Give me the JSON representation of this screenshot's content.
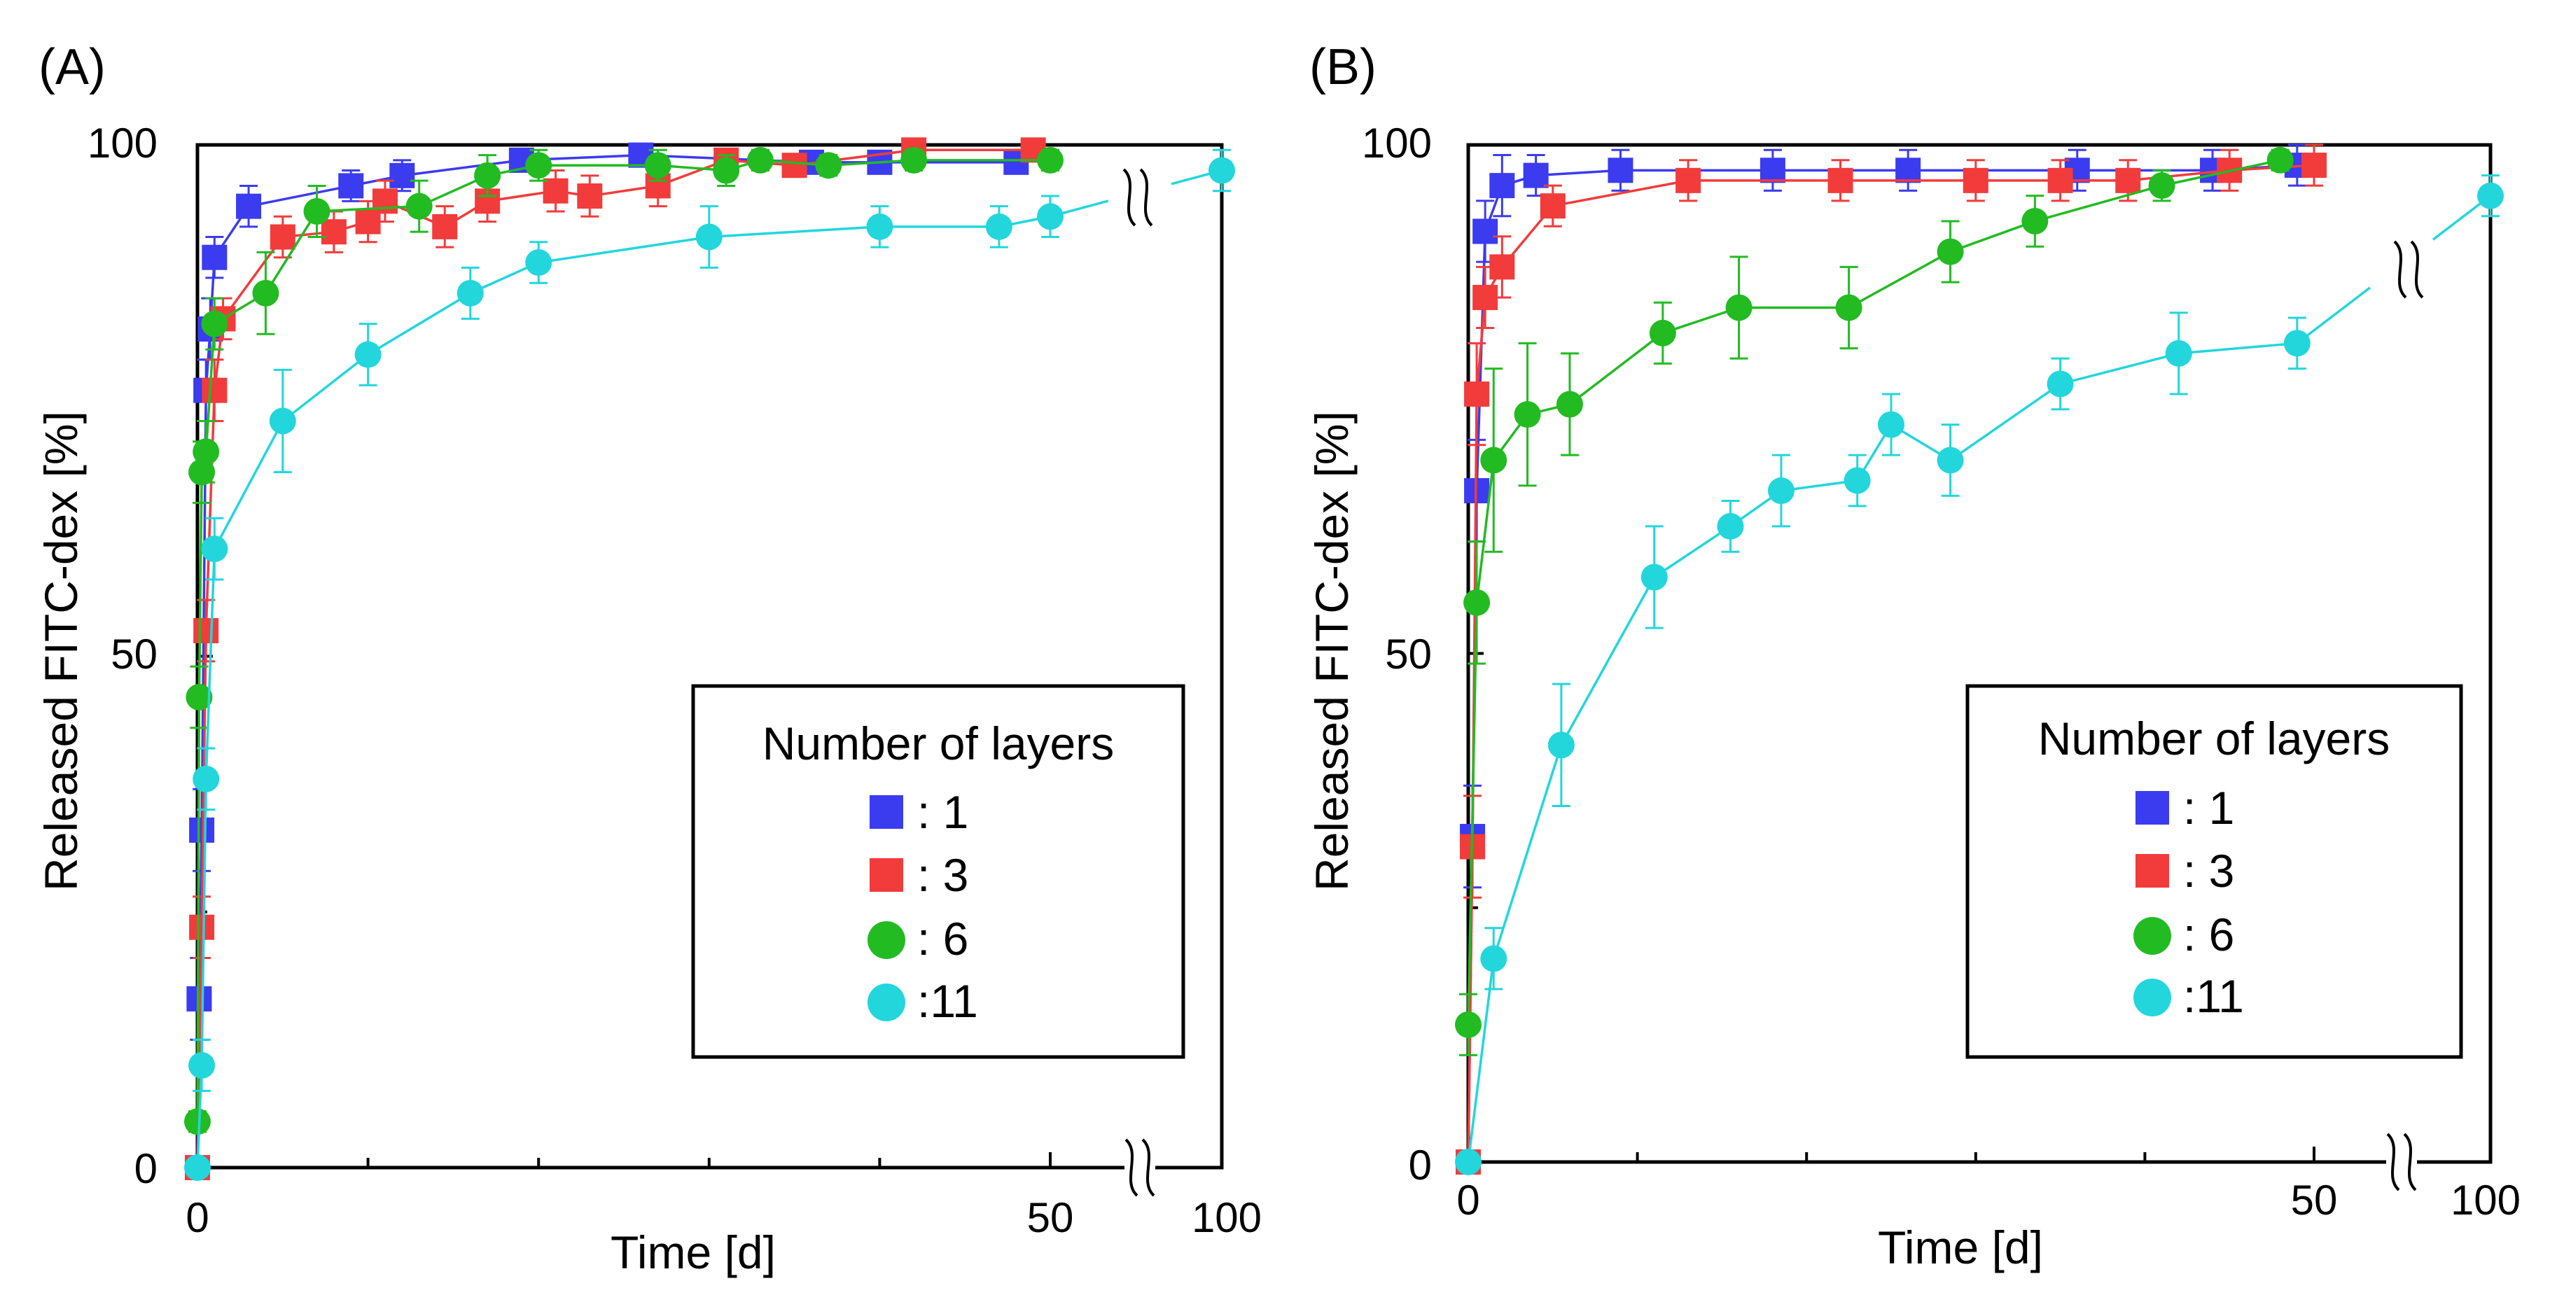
{
  "chart_data": [
    {
      "panel_label": "(A)",
      "type": "line",
      "xlabel": "Time [d]",
      "ylabel": "Released FITC-dex [%]",
      "ylim": [
        0,
        100
      ],
      "x_segment_main": [
        0,
        50
      ],
      "x_segment_break": [
        95,
        100
      ],
      "x_ticks": [
        "0",
        "50",
        "100"
      ],
      "y_ticks": [
        "0",
        "50",
        "100"
      ],
      "legend": {
        "title": "Number of layers",
        "position": "bottom-right"
      },
      "series": [
        {
          "name": "1",
          "legend_text": ":  1",
          "marker": "square",
          "color": "#3b3bf0",
          "x": [
            0,
            0.1,
            0.25,
            0.5,
            0.75,
            1,
            3,
            9,
            12,
            19,
            26,
            36,
            40,
            48
          ],
          "y": [
            0,
            16.5,
            33,
            76,
            82,
            89,
            94,
            96,
            97,
            98.5,
            99,
            98.3,
            98.3,
            98.3
          ],
          "err": [
            0,
            4,
            4,
            3,
            3,
            2,
            2,
            1.5,
            1.5,
            1,
            1,
            1,
            1,
            1
          ]
        },
        {
          "name": "3",
          "legend_text": ":  3",
          "marker": "square",
          "color": "#f23b3b",
          "x": [
            0,
            0.25,
            0.5,
            1,
            1.5,
            5,
            8,
            10,
            11,
            14.5,
            17,
            21,
            23,
            27,
            31,
            35,
            42,
            49
          ],
          "y": [
            0,
            23.5,
            52.5,
            76,
            83,
            91,
            91.5,
            92.5,
            94.5,
            92,
            94.5,
            95.5,
            95,
            96,
            98.5,
            98,
            99.5,
            99.5
          ],
          "err": [
            0,
            3,
            3,
            3,
            2,
            2,
            2,
            2,
            2,
            2,
            2,
            2,
            2,
            2,
            1,
            1,
            1,
            1
          ]
        },
        {
          "name": "6",
          "legend_text": ":  6",
          "marker": "circle",
          "color": "#22bb22",
          "x": [
            0,
            0.1,
            0.25,
            0.5,
            1,
            4,
            7,
            13,
            17,
            20,
            27,
            31,
            33,
            37,
            42,
            50
          ],
          "y": [
            4.5,
            46,
            68,
            70,
            82.5,
            85.5,
            93.5,
            94,
            97,
            98,
            98,
            97.5,
            98.5,
            98,
            98.5,
            98.5
          ],
          "err": [
            1,
            3,
            3,
            3,
            2.5,
            4,
            2.5,
            2.5,
            2,
            1.5,
            1.5,
            1.5,
            1,
            1,
            1,
            1
          ]
        },
        {
          "name": "11",
          "legend_text": ":11",
          "marker": "circle",
          "color": "#22d6dc",
          "x": [
            0,
            0.25,
            0.5,
            1,
            5,
            10,
            16,
            20,
            30,
            40,
            47,
            50,
            100
          ],
          "y": [
            0,
            10,
            38,
            60.5,
            73,
            79.5,
            85.5,
            88.5,
            91,
            92,
            92,
            93,
            97.5
          ],
          "err": [
            0,
            2.5,
            3,
            3,
            5,
            3,
            2.5,
            2,
            3,
            2,
            2,
            2,
            2
          ]
        }
      ]
    },
    {
      "panel_label": "(B)",
      "type": "line",
      "xlabel": "Time [d]",
      "ylabel": "Released FITC-dex [%]",
      "ylim": [
        0,
        100
      ],
      "x_segment_main": [
        0,
        50
      ],
      "x_segment_break": [
        95,
        100
      ],
      "x_ticks": [
        "0",
        "50",
        "100"
      ],
      "y_ticks": [
        "0",
        "50",
        "100"
      ],
      "legend": {
        "title": "Number of layers",
        "position": "bottom-right"
      },
      "series": [
        {
          "name": "1",
          "legend_text": ":  1",
          "marker": "square",
          "color": "#3b3bf0",
          "x": [
            0,
            0.25,
            0.5,
            1,
            2,
            4,
            9,
            18,
            26,
            36,
            44,
            49
          ],
          "y": [
            0,
            32,
            66,
            91.5,
            96,
            97,
            97.5,
            97.5,
            97.5,
            97.5,
            97.5,
            98
          ],
          "err": [
            0,
            5,
            5,
            3,
            3,
            2,
            2,
            2,
            2,
            2,
            2,
            2
          ]
        },
        {
          "name": "3",
          "legend_text": ":  3",
          "marker": "square",
          "color": "#f23b3b",
          "x": [
            0,
            0.25,
            0.5,
            1,
            2,
            5,
            13,
            22,
            30,
            35,
            39,
            45,
            50
          ],
          "y": [
            0,
            31,
            75.5,
            85,
            88,
            94,
            96.5,
            96.5,
            96.5,
            96.5,
            96.5,
            97.5,
            98
          ],
          "err": [
            0,
            5,
            5,
            3,
            3,
            2,
            2,
            2,
            2,
            2,
            2,
            2,
            2
          ]
        },
        {
          "name": "6",
          "legend_text": ":  6",
          "marker": "circle",
          "color": "#22bb22",
          "x": [
            0,
            0.5,
            1.5,
            3.5,
            6,
            11.5,
            16,
            22.5,
            28.5,
            33.5,
            41,
            48
          ],
          "y": [
            13.5,
            55,
            69,
            73.5,
            74.5,
            81.5,
            84,
            84,
            89.5,
            92.5,
            96,
            98.5
          ],
          "err": [
            3,
            6,
            9,
            7,
            5,
            3,
            5,
            4,
            3,
            2.5,
            1.5,
            1
          ]
        },
        {
          "name": "11",
          "legend_text": ":11",
          "marker": "circle",
          "color": "#22d6dc",
          "x": [
            0,
            1.5,
            5.5,
            11,
            15.5,
            18.5,
            23,
            25,
            28.5,
            35,
            42,
            49,
            100
          ],
          "y": [
            0,
            20,
            41,
            57.5,
            62.5,
            66,
            67,
            72.5,
            69,
            76.5,
            79.5,
            80.5,
            95
          ],
          "err": [
            0,
            3,
            6,
            5,
            2.5,
            3.5,
            2.5,
            3,
            3.5,
            2.5,
            4,
            2.5,
            2
          ]
        }
      ]
    }
  ]
}
